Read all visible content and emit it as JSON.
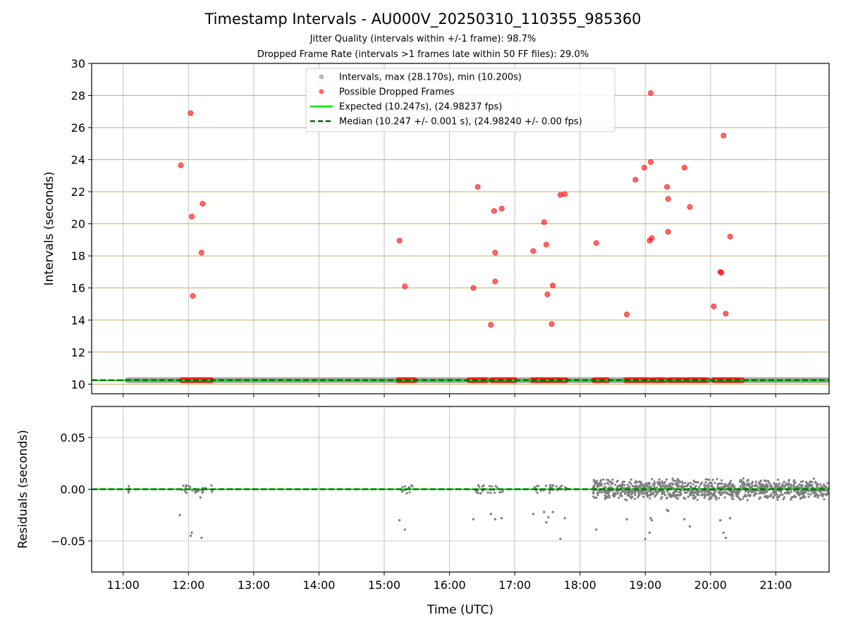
{
  "header": {
    "title": "Timestamp Intervals - AU000V_20250310_110355_985360",
    "subtitle1": "Jitter Quality (intervals within +/-1 frame): 98.7%",
    "subtitle2": "Dropped Frame Rate (intervals >1 frames late within 50 FF files): 29.0%"
  },
  "colors": {
    "grey_points": "#808080",
    "red_points": "#ff0000",
    "expected_line": "#00ee00",
    "median_line": "#006400",
    "hgrid_top": "#c8b060",
    "grid": "#cccccc"
  },
  "chart_data": [
    {
      "type": "scatter",
      "title": "",
      "xlabel": "",
      "ylabel": "Intervals (seconds)",
      "xlim": [
        "10:31",
        "21:49"
      ],
      "ylim": [
        9.4,
        30
      ],
      "yticks": [
        "10",
        "12",
        "14",
        "16",
        "18",
        "20",
        "22",
        "24",
        "26",
        "28",
        "30"
      ],
      "xticks": [
        "11:00",
        "12:00",
        "13:00",
        "14:00",
        "15:00",
        "16:00",
        "17:00",
        "18:00",
        "19:00",
        "20:00",
        "21:00"
      ],
      "grid": "on",
      "legend_position": "top-center",
      "legend": [
        {
          "label": "Intervals, max (28.170s), min (10.200s)",
          "kind": "grey-marker"
        },
        {
          "label": "Possible Dropped Frames",
          "kind": "red-marker"
        },
        {
          "label": "Expected (10.247s), (24.98237 fps)",
          "kind": "solid-line"
        },
        {
          "label": "Median (10.247 +/- 0.001 s), (24.98240 +/- 0.00 fps)",
          "kind": "dashed-line"
        }
      ],
      "series": [
        {
          "name": "Intervals, max (28.170s), min (10.200s)",
          "baseline_value": 10.247,
          "x_range": [
            "11:04",
            "21:49"
          ]
        },
        {
          "name": "Possible Dropped Frames",
          "points": [
            [
              "11:53",
              23.65
            ],
            [
              "12:02",
              26.9
            ],
            [
              "12:03",
              20.45
            ],
            [
              "12:04",
              15.5
            ],
            [
              "12:12",
              18.2
            ],
            [
              "12:13",
              21.25
            ],
            [
              "15:14",
              18.95
            ],
            [
              "15:19",
              16.1
            ],
            [
              "16:22",
              16.0
            ],
            [
              "16:26",
              22.3
            ],
            [
              "16:38",
              13.7
            ],
            [
              "16:41",
              20.8
            ],
            [
              "16:42",
              18.2
            ],
            [
              "16:42",
              16.4
            ],
            [
              "16:48",
              20.95
            ],
            [
              "17:17",
              18.3
            ],
            [
              "17:27",
              20.1
            ],
            [
              "17:29",
              18.7
            ],
            [
              "17:30",
              15.6
            ],
            [
              "17:34",
              13.75
            ],
            [
              "17:35",
              16.15
            ],
            [
              "17:42",
              21.8
            ],
            [
              "17:46",
              21.85
            ],
            [
              "18:15",
              18.8
            ],
            [
              "18:43",
              14.35
            ],
            [
              "18:51",
              22.75
            ],
            [
              "18:59",
              23.5
            ],
            [
              "19:04",
              18.95
            ],
            [
              "19:05",
              23.85
            ],
            [
              "19:05",
              28.15
            ],
            [
              "19:06",
              19.1
            ],
            [
              "19:20",
              22.3
            ],
            [
              "19:21",
              21.55
            ],
            [
              "19:21",
              19.5
            ],
            [
              "19:36",
              23.5
            ],
            [
              "19:41",
              21.05
            ],
            [
              "20:03",
              14.85
            ],
            [
              "20:09",
              17.0
            ],
            [
              "20:10",
              16.95
            ],
            [
              "20:12",
              25.5
            ],
            [
              "20:14",
              14.4
            ],
            [
              "20:18",
              19.2
            ]
          ],
          "baseline_value": 10.25,
          "baseline_ranges": [
            [
              "11:54",
              "12:21"
            ],
            [
              "15:13",
              "15:28"
            ],
            [
              "16:18",
              "16:34"
            ],
            [
              "16:39",
              "17:00"
            ],
            [
              "17:16",
              "17:27"
            ],
            [
              "17:29",
              "17:47"
            ],
            [
              "18:13",
              "18:25"
            ],
            [
              "18:42",
              "19:03"
            ],
            [
              "19:06",
              "19:18"
            ],
            [
              "19:22",
              "19:36"
            ],
            [
              "19:39",
              "19:57"
            ],
            [
              "20:03",
              "20:29"
            ]
          ]
        },
        {
          "name": "Expected (10.247s), (24.98237 fps)",
          "value": 10.247
        },
        {
          "name": "Median (10.247 +/- 0.001 s), (24.98240 +/- 0.00 fps)",
          "value": 10.247
        }
      ]
    },
    {
      "type": "scatter",
      "title": "",
      "xlabel": "Time (UTC)",
      "ylabel": "Residuals (seconds)",
      "xlim": [
        "10:31",
        "21:49"
      ],
      "ylim": [
        -0.08,
        0.08
      ],
      "yticks": [
        "0.05",
        "0.00",
        "−0.05"
      ],
      "xticks": [
        "11:00",
        "12:00",
        "13:00",
        "14:00",
        "15:00",
        "16:00",
        "17:00",
        "18:00",
        "19:00",
        "20:00",
        "21:00"
      ],
      "grid": "on",
      "series": [
        {
          "name": "",
          "dense_band": {
            "x_range": [
              "18:12",
              "21:49"
            ],
            "y_spread": 0.012
          },
          "clusters": [
            [
              "11:05",
              "11:06"
            ],
            [
              "11:53",
              "12:23"
            ],
            [
              "15:13",
              "15:27"
            ],
            [
              "16:24",
              "16:52"
            ],
            [
              "17:18",
              "17:50"
            ]
          ],
          "outliers": [
            [
              "11:05",
              -0.003
            ],
            [
              "11:52",
              -0.025
            ],
            [
              "12:02",
              -0.045
            ],
            [
              "12:03",
              -0.042
            ],
            [
              "12:11",
              -0.008
            ],
            [
              "12:12",
              -0.047
            ],
            [
              "15:14",
              -0.03
            ],
            [
              "15:19",
              -0.039
            ],
            [
              "16:22",
              -0.029
            ],
            [
              "16:38",
              -0.024
            ],
            [
              "16:42",
              -0.029
            ],
            [
              "16:48",
              -0.028
            ],
            [
              "17:17",
              -0.024
            ],
            [
              "17:27",
              -0.022
            ],
            [
              "17:29",
              -0.032
            ],
            [
              "17:31",
              -0.027
            ],
            [
              "17:35",
              -0.022
            ],
            [
              "17:42",
              -0.048
            ],
            [
              "17:46",
              -0.028
            ],
            [
              "18:15",
              -0.039
            ],
            [
              "18:43",
              -0.029
            ],
            [
              "19:00",
              -0.048
            ],
            [
              "19:04",
              -0.042
            ],
            [
              "19:05",
              -0.028
            ],
            [
              "19:06",
              -0.03
            ],
            [
              "19:20",
              -0.02
            ],
            [
              "19:21",
              -0.021
            ],
            [
              "19:36",
              -0.029
            ],
            [
              "19:41",
              -0.036
            ],
            [
              "20:09",
              -0.03
            ],
            [
              "20:12",
              -0.042
            ],
            [
              "20:14",
              -0.047
            ],
            [
              "20:18",
              -0.028
            ]
          ]
        },
        {
          "name": "Expected",
          "value": 0.0
        },
        {
          "name": "Median",
          "value": 0.0
        }
      ]
    }
  ]
}
